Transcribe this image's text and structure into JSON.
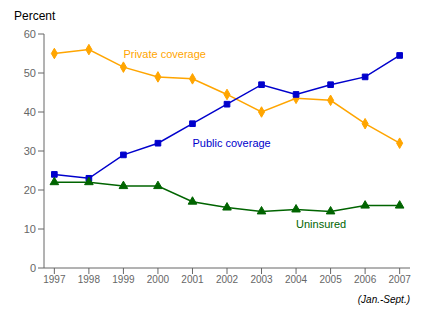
{
  "chart_data": {
    "type": "line",
    "x": [
      1997,
      1998,
      1999,
      2000,
      2001,
      2002,
      2003,
      2004,
      2005,
      2006,
      2007
    ],
    "series": [
      {
        "name": "Private coverage",
        "color": "#FFA500",
        "marker": "diamond",
        "values": [
          55,
          56,
          51.5,
          49,
          48.5,
          44.5,
          40,
          43.5,
          43,
          37,
          32
        ]
      },
      {
        "name": "Public coverage",
        "color": "#0000CC",
        "marker": "square",
        "values": [
          24,
          23,
          29,
          32,
          37,
          42,
          47,
          44.5,
          47,
          49,
          54.5
        ]
      },
      {
        "name": "Uninsured",
        "color": "#006400",
        "marker": "triangle",
        "values": [
          22,
          22,
          21,
          21,
          17,
          15.5,
          14.5,
          15,
          14.5,
          16,
          16
        ]
      }
    ],
    "ylabel": "Percent",
    "annotations": [
      "(Jan.-Sept.)"
    ],
    "xlim": [
      1996.7,
      2007.3
    ],
    "xticks": [
      1997,
      1998,
      1999,
      2000,
      2001,
      2002,
      2003,
      2004,
      2005,
      2006,
      2007
    ],
    "ylim": [
      0,
      60
    ],
    "yticks": [
      0,
      10,
      20,
      30,
      40,
      50,
      60
    ],
    "grid": false
  }
}
